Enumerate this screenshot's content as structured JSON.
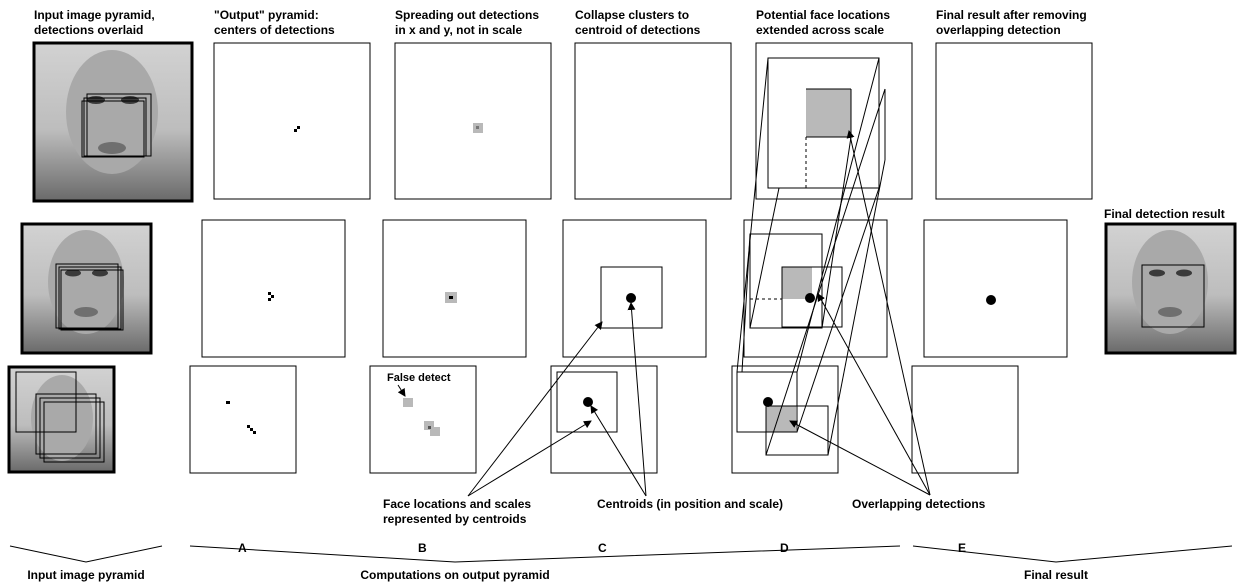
{
  "labels": {
    "col_input_1": "Input image pyramid,",
    "col_input_2": "detections overlaid",
    "col_a_1": "\"Output\" pyramid:",
    "col_a_2": "centers of detections",
    "col_b_1": "Spreading out detections",
    "col_b_2": "in x and y, not in scale",
    "col_c_1": "Collapse clusters to",
    "col_c_2": "centroid of detections",
    "col_d_1": "Potential face locations",
    "col_d_2": "extended across scale",
    "col_e_1": "Final result after removing",
    "col_e_2": "overlapping detection",
    "final_detection": "Final detection result",
    "false_detect": "False detect",
    "face_loc_1": "Face locations and scales",
    "face_loc_2": "represented by centroids",
    "centroids": "Centroids (in position and scale)",
    "overlapping": "Overlapping detections"
  },
  "brackets": {
    "input": "Input image pyramid",
    "computations": "Computations on output pyramid",
    "final": "Final result",
    "A": "A",
    "B": "B",
    "C": "C",
    "D": "D",
    "E": "E"
  }
}
